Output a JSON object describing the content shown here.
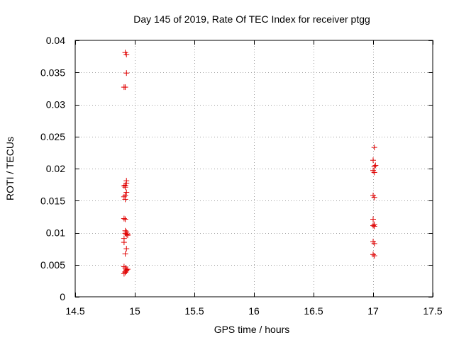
{
  "chart_data": {
    "type": "scatter",
    "title": "Day 145 of 2019, Rate Of TEC Index for receiver ptgg",
    "xlabel": "GPS time / hours",
    "ylabel": "ROTI / TECUs",
    "xlim": [
      14.5,
      17.5
    ],
    "ylim": [
      0,
      0.04
    ],
    "grid": true,
    "xticks": [
      "14.5",
      "15",
      "15.5",
      "16",
      "16.5",
      "17",
      "17.5"
    ],
    "xtick_values": [
      14.5,
      15,
      15.5,
      16,
      16.5,
      17,
      17.5
    ],
    "yticks": [
      "0",
      "0.005",
      "0.01",
      "0.015",
      "0.02",
      "0.025",
      "0.03",
      "0.035",
      "0.04"
    ],
    "ytick_values": [
      0,
      0.005,
      0.01,
      0.015,
      0.02,
      0.025,
      0.03,
      0.035,
      0.04
    ],
    "marker": "+",
    "color": "#e00000",
    "series": [
      {
        "name": "ROTI",
        "points": [
          [
            14.92,
            0.0381
          ],
          [
            14.93,
            0.0378
          ],
          [
            14.93,
            0.0349
          ],
          [
            14.91,
            0.0327
          ],
          [
            14.92,
            0.0327
          ],
          [
            14.93,
            0.0181
          ],
          [
            14.93,
            0.0177
          ],
          [
            14.92,
            0.0174
          ],
          [
            14.91,
            0.0173
          ],
          [
            14.92,
            0.0171
          ],
          [
            14.93,
            0.0163
          ],
          [
            14.92,
            0.0158
          ],
          [
            14.91,
            0.0156
          ],
          [
            14.92,
            0.0152
          ],
          [
            14.91,
            0.0122
          ],
          [
            14.92,
            0.0121
          ],
          [
            14.92,
            0.0103
          ],
          [
            14.93,
            0.0101
          ],
          [
            14.92,
            0.0099
          ],
          [
            14.94,
            0.0098
          ],
          [
            14.93,
            0.0097
          ],
          [
            14.94,
            0.0096
          ],
          [
            14.91,
            0.0091
          ],
          [
            14.91,
            0.0085
          ],
          [
            14.93,
            0.0075
          ],
          [
            14.92,
            0.0067
          ],
          [
            14.91,
            0.0047
          ],
          [
            14.92,
            0.0045
          ],
          [
            14.94,
            0.0043
          ],
          [
            14.93,
            0.0042
          ],
          [
            14.93,
            0.0041
          ],
          [
            14.92,
            0.0039
          ],
          [
            14.92,
            0.0038
          ],
          [
            14.91,
            0.0036
          ],
          [
            17.01,
            0.0233
          ],
          [
            17.0,
            0.0213
          ],
          [
            17.02,
            0.0205
          ],
          [
            17.01,
            0.0203
          ],
          [
            17.0,
            0.0197
          ],
          [
            17.01,
            0.0194
          ],
          [
            17.0,
            0.0158
          ],
          [
            17.01,
            0.0155
          ],
          [
            17.0,
            0.0121
          ],
          [
            17.01,
            0.0113
          ],
          [
            17.0,
            0.0111
          ],
          [
            17.01,
            0.011
          ],
          [
            17.0,
            0.0086
          ],
          [
            17.01,
            0.0083
          ],
          [
            17.0,
            0.0066
          ],
          [
            17.01,
            0.0064
          ]
        ]
      }
    ]
  }
}
